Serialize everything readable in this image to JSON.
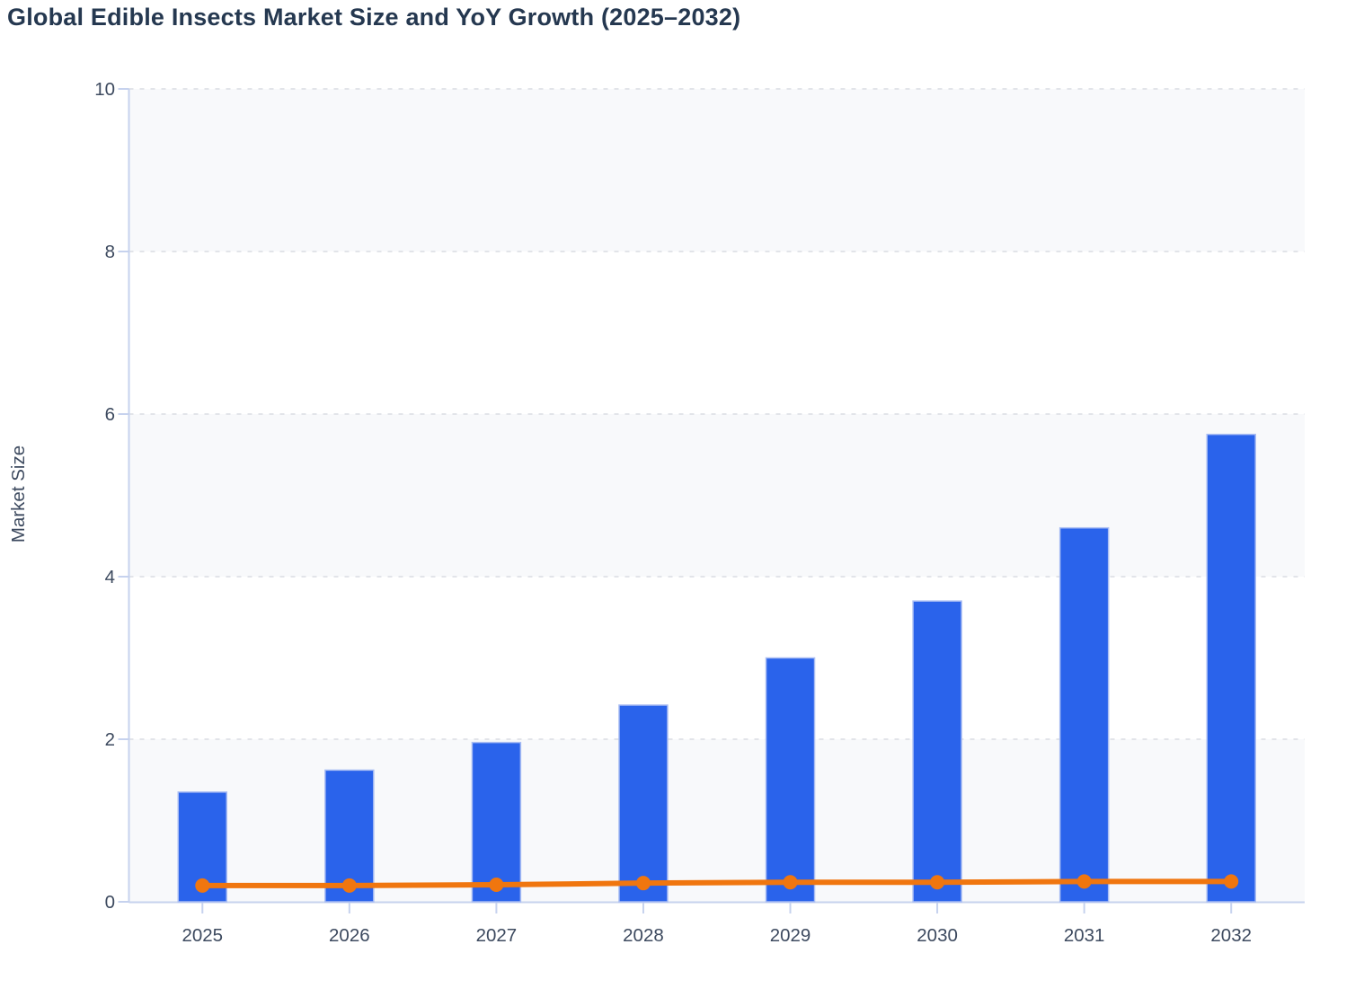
{
  "chart_data": {
    "type": "bar",
    "title": "Global Edible Insects Market Size and YoY Growth (2025–2032)",
    "xlabel": "",
    "ylabel": "Market Size",
    "categories": [
      "2025",
      "2026",
      "2027",
      "2028",
      "2029",
      "2030",
      "2031",
      "2032"
    ],
    "series": [
      {
        "name": "Market Size",
        "kind": "bar",
        "values": [
          1.35,
          1.62,
          1.96,
          2.42,
          3.0,
          3.7,
          4.6,
          5.75
        ]
      },
      {
        "name": "YoY Growth",
        "kind": "line",
        "values": [
          0.2,
          0.2,
          0.21,
          0.23,
          0.24,
          0.24,
          0.25,
          0.25
        ]
      }
    ],
    "ylim": [
      0,
      10
    ],
    "yticks": [
      0,
      2,
      4,
      6,
      8,
      10
    ],
    "grid": "horizontal-dashed",
    "legend": "none",
    "shaded_bands": [
      [
        0,
        2
      ],
      [
        4,
        6
      ],
      [
        8,
        10
      ]
    ]
  },
  "colors": {
    "title": "#253850",
    "tick_label": "#3d4a5f",
    "axis": "#c6d2ee",
    "grid": "#e2e4e9",
    "band": "#f8f9fb",
    "bar": "#2a63eb",
    "bar_border": "#a9bdf3",
    "line": "#f0760f",
    "background": "#ffffff"
  }
}
